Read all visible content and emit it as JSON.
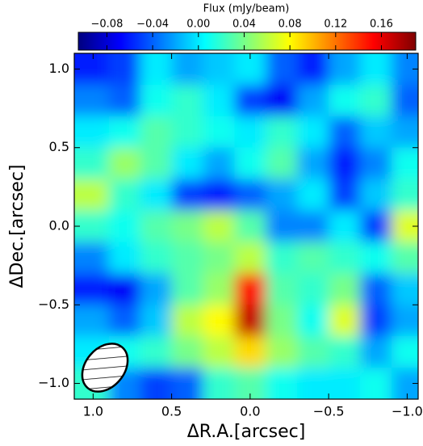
{
  "chart_data": {
    "type": "heatmap",
    "colorbar_label": "Flux (mJy/beam)",
    "xlabel": "ΔR.A.[arcsec]",
    "ylabel": "ΔDec.[arcsec]",
    "colormap": "jet",
    "x": [
      1.0,
      0.8,
      0.6,
      0.4,
      0.2,
      0.0,
      -0.2,
      -0.4,
      -0.6,
      -0.8,
      -1.0
    ],
    "y": [
      1.0,
      0.8,
      0.6,
      0.4,
      0.2,
      0.0,
      -0.2,
      -0.4,
      -0.6,
      -0.8,
      -1.0
    ],
    "z": [
      [
        -0.06,
        -0.05,
        0.0,
        -0.02,
        -0.01,
        0.0,
        -0.04,
        -0.06,
        -0.02,
        0.0,
        -0.03
      ],
      [
        -0.03,
        -0.04,
        0.01,
        0.02,
        0.0,
        -0.05,
        -0.07,
        -0.02,
        0.01,
        0.02,
        -0.04
      ],
      [
        0.0,
        0.01,
        0.03,
        0.02,
        0.01,
        0.0,
        0.02,
        0.0,
        -0.04,
        -0.01,
        -0.02
      ],
      [
        0.02,
        0.05,
        0.03,
        0.0,
        -0.02,
        0.01,
        0.03,
        -0.02,
        -0.06,
        -0.03,
        0.01
      ],
      [
        0.06,
        0.02,
        0.0,
        -0.05,
        -0.06,
        -0.04,
        -0.02,
        0.0,
        -0.05,
        -0.01,
        0.02
      ],
      [
        0.02,
        0.01,
        0.03,
        0.04,
        0.06,
        0.03,
        -0.03,
        -0.03,
        0.0,
        -0.05,
        0.07
      ],
      [
        -0.03,
        0.0,
        0.02,
        0.03,
        0.04,
        0.06,
        0.02,
        0.03,
        0.02,
        0.01,
        0.03
      ],
      [
        -0.06,
        -0.07,
        -0.02,
        0.03,
        0.05,
        0.15,
        0.03,
        0.02,
        0.04,
        -0.04,
        -0.01
      ],
      [
        -0.02,
        -0.04,
        -0.01,
        0.06,
        0.08,
        0.17,
        0.04,
        0.01,
        0.07,
        -0.05,
        -0.02
      ],
      [
        0.0,
        0.01,
        0.02,
        0.04,
        0.06,
        0.09,
        0.05,
        0.03,
        0.02,
        -0.02,
        0.01
      ],
      [
        0.02,
        -0.03,
        -0.05,
        -0.04,
        0.02,
        0.03,
        0.01,
        0.0,
        0.0,
        0.01,
        -0.02
      ]
    ],
    "xlim": [
      1.12,
      -1.07
    ],
    "ylim": [
      -1.1,
      1.1
    ],
    "xticks": [
      {
        "value": 1.0,
        "label": "1.0"
      },
      0.5,
      {
        "value": 0.0,
        "label": "0.0"
      },
      {
        "value": -0.5,
        "label": "−0.5"
      },
      {
        "value": -1.0,
        "label": "−1.0"
      }
    ],
    "yticks": [
      {
        "value": 1.0,
        "label": "1.0"
      },
      0.5,
      {
        "value": 0.0,
        "label": "0.0"
      },
      {
        "value": -0.5,
        "label": "−0.5"
      },
      {
        "value": -1.0,
        "label": "−1.0"
      }
    ],
    "clim": [
      -0.105,
      0.19
    ],
    "cticks": [
      {
        "value": -0.08,
        "label": "−0.08"
      },
      {
        "value": -0.04,
        "label": "−0.04"
      },
      {
        "value": 0.0,
        "label": "0.00"
      },
      0.04,
      0.08,
      0.12,
      0.16
    ]
  }
}
